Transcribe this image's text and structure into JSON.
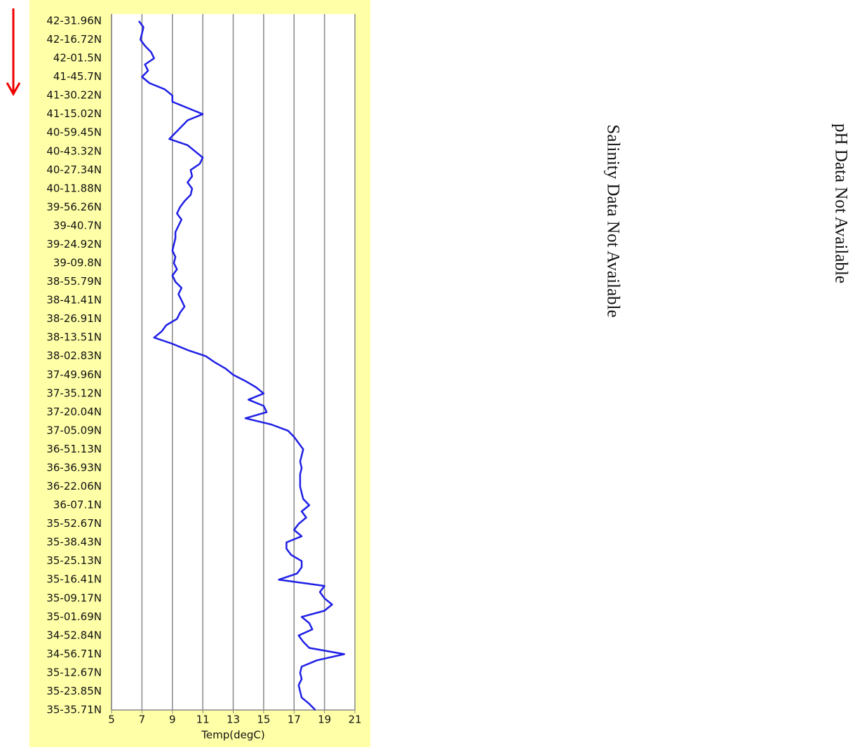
{
  "chart_data": {
    "type": "line",
    "xlabel": "Temp(degC)",
    "color": "#1f1fe6",
    "xlim": [
      5,
      21
    ],
    "xticks": [
      5,
      7,
      9,
      11,
      13,
      15,
      17,
      19,
      21
    ],
    "grid": true,
    "categories": [
      "42-31.96N",
      null,
      null,
      "42-16.72N",
      null,
      null,
      "42-01.5N",
      null,
      null,
      "41-45.7N",
      null,
      null,
      "41-30.22N",
      null,
      null,
      "41-15.02N",
      null,
      null,
      "40-59.45N",
      null,
      null,
      "40-43.32N",
      null,
      null,
      "40-27.34N",
      null,
      null,
      "40-11.88N",
      null,
      null,
      "39-56.26N",
      null,
      null,
      "39-40.7N",
      null,
      null,
      "39-24.92N",
      null,
      null,
      "39-09.8N",
      null,
      null,
      "38-55.79N",
      null,
      null,
      "38-41.41N",
      null,
      null,
      "38-26.91N",
      null,
      null,
      "38-13.51N",
      null,
      null,
      "38-02.83N",
      null,
      null,
      "37-49.96N",
      null,
      null,
      "37-35.12N",
      null,
      null,
      "37-20.04N",
      null,
      null,
      "37-05.09N",
      null,
      null,
      "36-51.13N",
      null,
      null,
      "36-36.93N",
      null,
      null,
      "36-22.06N",
      null,
      null,
      "36-07.1N",
      null,
      null,
      "35-52.67N",
      null,
      null,
      "35-38.43N",
      null,
      null,
      "35-25.13N",
      null,
      null,
      "35-16.41N",
      null,
      null,
      "35-09.17N",
      null,
      null,
      "35-01.69N",
      null,
      null,
      "34-52.84N",
      null,
      null,
      "34-56.71N",
      null,
      null,
      "35-12.67N",
      null,
      null,
      "35-23.85N",
      null,
      null,
      "35-35.71N"
    ],
    "values": [
      6.8,
      7.1,
      7.0,
      6.9,
      7.2,
      7.6,
      7.8,
      7.2,
      7.4,
      7.0,
      7.5,
      8.5,
      9.0,
      9.0,
      10.0,
      11.0,
      10.0,
      9.6,
      9.2,
      8.8,
      10.0,
      10.5,
      11.0,
      10.8,
      10.2,
      10.3,
      10.0,
      10.3,
      10.2,
      9.8,
      9.5,
      9.3,
      9.6,
      9.4,
      9.2,
      9.2,
      9.1,
      9.0,
      9.2,
      9.1,
      9.3,
      9.0,
      9.2,
      9.6,
      9.4,
      9.6,
      9.8,
      9.5,
      9.3,
      8.6,
      8.3,
      7.8,
      9.0,
      10.0,
      11.2,
      11.8,
      12.5,
      13.0,
      13.8,
      14.5,
      15.0,
      14.0,
      15.0,
      15.2,
      13.8,
      15.5,
      16.6,
      17.0,
      17.3,
      17.6,
      17.5,
      17.4,
      17.5,
      17.4,
      17.4,
      17.4,
      17.5,
      17.6,
      18.0,
      17.5,
      17.8,
      17.3,
      17.0,
      17.5,
      16.5,
      16.5,
      16.8,
      17.5,
      17.5,
      17.2,
      16.0,
      19.0,
      18.7,
      19.0,
      19.5,
      19.0,
      17.5,
      18.0,
      18.2,
      17.3,
      17.6,
      18.0,
      20.3,
      18.5,
      17.5,
      17.4,
      17.5,
      17.3,
      17.4,
      17.5,
      18.0,
      18.4
    ]
  },
  "salinity_message": "Salinity Data Not Available",
  "ph_message": "pH Data Not Available"
}
